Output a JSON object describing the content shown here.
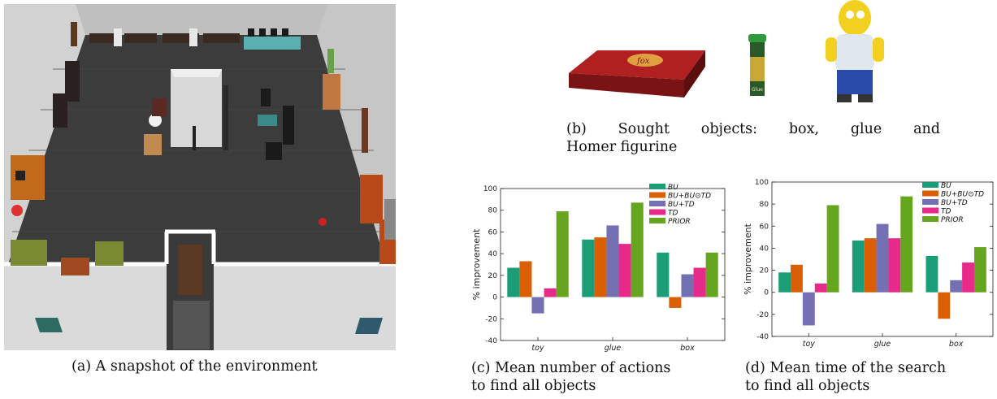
{
  "figures": {
    "a": {
      "caption": "(a) A snapshot of the environment"
    },
    "b": {
      "caption_line1": "(b) Sought objects: box, glue and",
      "caption_line2": "Homer figurine",
      "box_brand": "fox",
      "glue_label": "Glue"
    },
    "c": {
      "caption_line1": "(c) Mean number of actions",
      "caption_line2": "to find all objects"
    },
    "d": {
      "caption_line1": "(d) Mean time of the search",
      "caption_line2": "to find all objects"
    }
  },
  "colors": {
    "BU": "#1b9e77",
    "BU+BU⊙TD": "#d95f02",
    "BU+TD": "#7570b3",
    "TD": "#e7298a",
    "PRIOR": "#66a61e"
  },
  "chart_data": [
    {
      "id": "c",
      "type": "bar",
      "ylabel": "% improvement",
      "ylim": [
        -40,
        100
      ],
      "yticks": [
        -40,
        -20,
        0,
        20,
        40,
        60,
        80,
        100
      ],
      "categories": [
        "toy",
        "glue",
        "box"
      ],
      "legend_placement": "top-right",
      "series": [
        {
          "name": "BU",
          "values": [
            27,
            53,
            41
          ]
        },
        {
          "name": "BU+BU⊙TD",
          "values": [
            33,
            55,
            -10
          ]
        },
        {
          "name": "BU+TD",
          "values": [
            -15,
            66,
            21
          ]
        },
        {
          "name": "TD",
          "values": [
            8,
            49,
            27
          ]
        },
        {
          "name": "PRIOR",
          "values": [
            79,
            87,
            41
          ]
        }
      ]
    },
    {
      "id": "d",
      "type": "bar",
      "ylabel": "% improvement",
      "ylim": [
        -40,
        100
      ],
      "yticks": [
        -40,
        -20,
        0,
        20,
        40,
        60,
        80,
        100
      ],
      "categories": [
        "toy",
        "glue",
        "box"
      ],
      "legend_placement": "top-right",
      "series": [
        {
          "name": "BU",
          "values": [
            18,
            47,
            33
          ]
        },
        {
          "name": "BU+BU⊙TD",
          "values": [
            25,
            49,
            -24
          ]
        },
        {
          "name": "BU+TD",
          "values": [
            -30,
            62,
            11
          ]
        },
        {
          "name": "TD",
          "values": [
            8,
            49,
            27
          ]
        },
        {
          "name": "PRIOR",
          "values": [
            79,
            87,
            41
          ]
        }
      ]
    }
  ]
}
